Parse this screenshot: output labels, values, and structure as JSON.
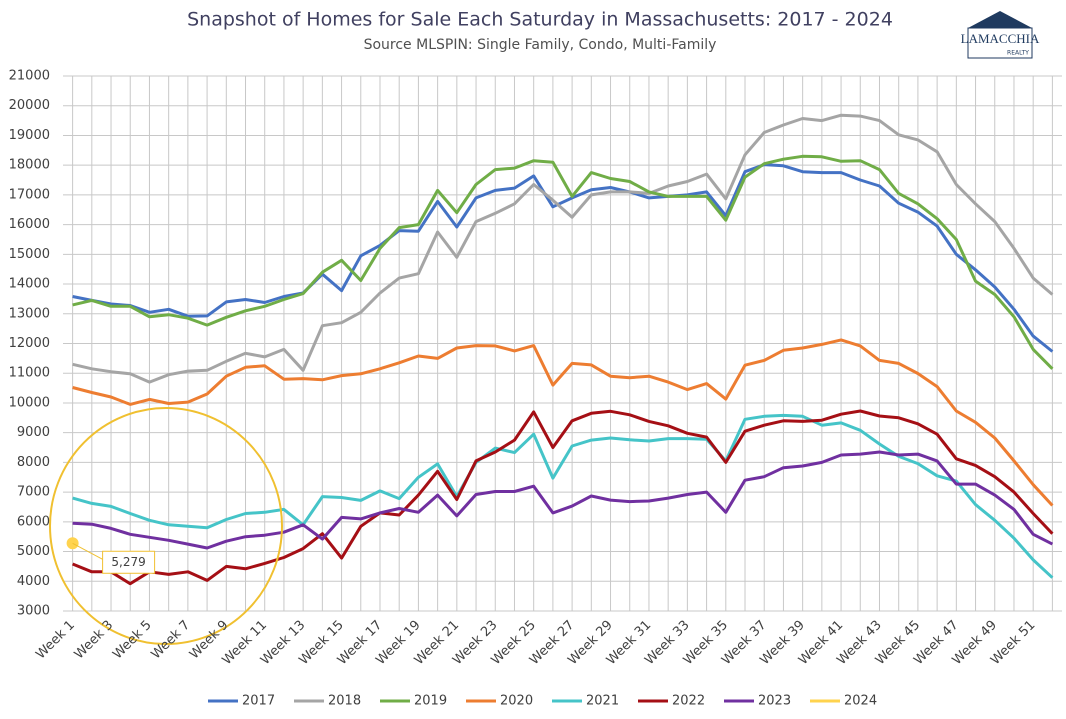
{
  "logo": {
    "name": "LAMACCHIA",
    "sub": "REALTY"
  },
  "chart_data": {
    "type": "line",
    "title": "Snapshot of Homes for Sale Each Saturday in Massachusetts: 2017 - 2024",
    "subtitle": "Source MLSPIN: Single Family, Condo, Multi-Family",
    "categories": [
      "Week 1",
      null,
      "Week 3",
      null,
      "Week 5",
      null,
      "Week 7",
      null,
      "Week 9",
      null,
      "Week 11",
      null,
      "Week 13",
      null,
      "Week 15",
      null,
      "Week 17",
      null,
      "Week 19",
      null,
      "Week 21",
      null,
      "Week 23",
      null,
      "Week 25",
      null,
      "Week 27",
      null,
      "Week 29",
      null,
      "Week 31",
      null,
      "Week 33",
      null,
      "Week 35",
      null,
      "Week 37",
      null,
      "Week 39",
      null,
      "Week 41",
      null,
      "Week 43",
      null,
      "Week 45",
      null,
      "Week 47",
      null,
      "Week 49",
      null,
      "Week 51",
      null
    ],
    "ylim": [
      3000,
      21000
    ],
    "yticks": [
      3000,
      4000,
      5000,
      6000,
      7000,
      8000,
      9000,
      10000,
      11000,
      12000,
      13000,
      14000,
      15000,
      16000,
      17000,
      18000,
      19000,
      20000,
      21000
    ],
    "grid": true,
    "legend": "bottom",
    "series": [
      {
        "name": "2017",
        "color": "#4472c4",
        "values": [
          13580,
          13450,
          13330,
          13280,
          13050,
          13150,
          12920,
          12930,
          13400,
          13480,
          13380,
          13580,
          13700,
          14330,
          13780,
          14950,
          15300,
          15800,
          15780,
          16780,
          15920,
          16900,
          17150,
          17230,
          17640,
          16600,
          16900,
          17170,
          17250,
          17100,
          16900,
          16950,
          17000,
          17100,
          16300,
          17780,
          18020,
          17980,
          17780,
          17750,
          17750,
          17500,
          17300,
          16720,
          16420,
          15950,
          15000,
          14480,
          13900,
          13150,
          12250,
          11730
        ]
      },
      {
        "name": "2018",
        "color": "#a5a5a5",
        "values": [
          11300,
          11150,
          11050,
          10980,
          10700,
          10950,
          11070,
          11100,
          11400,
          11670,
          11550,
          11800,
          11100,
          12600,
          12700,
          13050,
          13700,
          14200,
          14350,
          15750,
          14900,
          16100,
          16380,
          16700,
          17350,
          16820,
          16250,
          17000,
          17100,
          17100,
          17050,
          17300,
          17450,
          17700,
          16870,
          18350,
          19100,
          19350,
          19570,
          19500,
          19680,
          19650,
          19500,
          19020,
          18850,
          18450,
          17350,
          16700,
          16100,
          15200,
          14200,
          13650
        ]
      },
      {
        "name": "2019",
        "color": "#70ad47",
        "values": [
          13300,
          13450,
          13250,
          13250,
          12900,
          12970,
          12850,
          12620,
          12880,
          13100,
          13250,
          13480,
          13680,
          14400,
          14800,
          14120,
          15200,
          15900,
          16000,
          17150,
          16400,
          17350,
          17850,
          17900,
          18150,
          18100,
          16950,
          17750,
          17550,
          17450,
          17100,
          16950,
          16950,
          16950,
          16150,
          17600,
          18050,
          18200,
          18300,
          18280,
          18130,
          18150,
          17850,
          17050,
          16700,
          16200,
          15500,
          14100,
          13650,
          12900,
          11800,
          11150
        ]
      },
      {
        "name": "2020",
        "color": "#ed7d31",
        "values": [
          10520,
          10350,
          10200,
          9950,
          10120,
          9980,
          10030,
          10300,
          10900,
          11200,
          11250,
          10800,
          10820,
          10780,
          10920,
          10980,
          11150,
          11350,
          11580,
          11500,
          11850,
          11930,
          11920,
          11750,
          11930,
          10600,
          11330,
          11280,
          10900,
          10850,
          10900,
          10700,
          10450,
          10650,
          10130,
          11270,
          11430,
          11770,
          11850,
          11970,
          12120,
          11920,
          11430,
          11330,
          10990,
          10550,
          9730,
          9350,
          8820,
          8050,
          7250,
          6550
        ]
      },
      {
        "name": "2021",
        "color": "#45c4c8",
        "values": [
          6800,
          6620,
          6520,
          6280,
          6050,
          5900,
          5850,
          5800,
          6080,
          6280,
          6320,
          6420,
          5900,
          6850,
          6820,
          6720,
          7040,
          6780,
          7500,
          7950,
          6850,
          8000,
          8480,
          8330,
          8950,
          7470,
          8550,
          8750,
          8820,
          8760,
          8720,
          8800,
          8800,
          8780,
          8050,
          9450,
          9550,
          9580,
          9550,
          9250,
          9330,
          9080,
          8620,
          8200,
          7960,
          7550,
          7370,
          6580,
          6050,
          5450,
          4720,
          4120
        ]
      },
      {
        "name": "2022",
        "color": "#a50f15",
        "values": [
          4580,
          4320,
          4320,
          3920,
          4320,
          4230,
          4320,
          4030,
          4500,
          4420,
          4600,
          4800,
          5100,
          5600,
          4780,
          5850,
          6300,
          6230,
          6900,
          7700,
          6750,
          8050,
          8350,
          8750,
          9700,
          8500,
          9400,
          9650,
          9720,
          9600,
          9380,
          9230,
          8980,
          8850,
          8000,
          9050,
          9250,
          9400,
          9380,
          9420,
          9620,
          9730,
          9560,
          9500,
          9300,
          8950,
          8120,
          7900,
          7520,
          7000,
          6280,
          5600
        ]
      },
      {
        "name": "2023",
        "color": "#7030a0",
        "values": [
          5950,
          5920,
          5780,
          5580,
          5480,
          5380,
          5250,
          5120,
          5350,
          5500,
          5550,
          5650,
          5900,
          5420,
          6150,
          6100,
          6300,
          6450,
          6320,
          6900,
          6200,
          6920,
          7020,
          7020,
          7200,
          6300,
          6530,
          6870,
          6730,
          6680,
          6700,
          6800,
          6920,
          7000,
          6320,
          7400,
          7520,
          7820,
          7880,
          8000,
          8250,
          8280,
          8350,
          8250,
          8280,
          8050,
          7270,
          7270,
          6900,
          6420,
          5580,
          5250
        ]
      },
      {
        "name": "2024",
        "color": "#ffd34e",
        "values": [
          5279,
          null,
          null,
          null,
          null,
          null,
          null,
          null,
          null,
          null,
          null,
          null,
          null,
          null,
          null,
          null,
          null,
          null,
          null,
          null,
          null,
          null,
          null,
          null,
          null,
          null,
          null,
          null,
          null,
          null,
          null,
          null,
          null,
          null,
          null,
          null,
          null,
          null,
          null,
          null,
          null,
          null,
          null,
          null,
          null,
          null,
          null,
          null,
          null,
          null,
          null,
          null
        ],
        "value_labels": [
          "5,279",
          null,
          null,
          null,
          null,
          null,
          null,
          null,
          null,
          null,
          null,
          null,
          null,
          null,
          null,
          null,
          null,
          null,
          null,
          null,
          null,
          null,
          null,
          null,
          null,
          null,
          null,
          null,
          null,
          null,
          null,
          null,
          null,
          null,
          null,
          null,
          null,
          null,
          null,
          null,
          null,
          null,
          null,
          null,
          null,
          null,
          null,
          null,
          null,
          null,
          null,
          null
        ]
      }
    ]
  }
}
